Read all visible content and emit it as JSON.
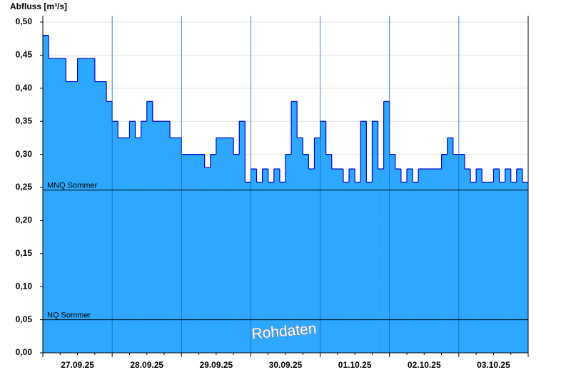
{
  "chart_data": {
    "type": "step-area",
    "title": "Abfluss [m³/s]",
    "watermark": "Rohdaten",
    "fill_color": "#2ea8ff",
    "line_color": "#0000cc",
    "grid": true,
    "categories": [
      null,
      null,
      null,
      null,
      null,
      null,
      "27.09.25",
      null,
      null,
      null,
      null,
      null,
      null,
      null,
      null,
      null,
      null,
      null,
      "28.09.25",
      null,
      null,
      null,
      null,
      null,
      null,
      null,
      null,
      null,
      null,
      null,
      "29.09.25",
      null,
      null,
      null,
      null,
      null,
      null,
      null,
      null,
      null,
      null,
      null,
      "30.09.25",
      null,
      null,
      null,
      null,
      null,
      null,
      null,
      null,
      null,
      null,
      null,
      "01.10.25",
      null,
      null,
      null,
      null,
      null,
      null,
      null,
      null,
      null,
      null,
      null,
      "02.10.25",
      null,
      null,
      null,
      null,
      null,
      null,
      null,
      null,
      null,
      null,
      null,
      "03.10.25",
      null,
      null,
      null,
      null,
      null
    ],
    "values": [
      0.48,
      0.445,
      0.445,
      0.445,
      0.41,
      0.41,
      0.445,
      0.445,
      0.445,
      0.41,
      0.41,
      0.38,
      0.35,
      0.325,
      0.325,
      0.35,
      0.325,
      0.35,
      0.38,
      0.35,
      0.35,
      0.35,
      0.325,
      0.325,
      0.3,
      0.3,
      0.3,
      0.3,
      0.28,
      0.3,
      0.325,
      0.325,
      0.325,
      0.3,
      0.35,
      0.258,
      0.278,
      0.258,
      0.278,
      0.258,
      0.278,
      0.258,
      0.3,
      0.38,
      0.325,
      0.3,
      0.278,
      0.325,
      0.35,
      0.3,
      0.278,
      0.278,
      0.258,
      0.278,
      0.258,
      0.35,
      0.258,
      0.35,
      0.278,
      0.38,
      0.3,
      0.278,
      0.258,
      0.278,
      0.258,
      0.278,
      0.278,
      0.278,
      0.278,
      0.3,
      0.325,
      0.3,
      0.3,
      0.278,
      0.258,
      0.278,
      0.258,
      0.258,
      0.278,
      0.258,
      0.278,
      0.258,
      0.278,
      0.258
    ],
    "reference_lines": [
      {
        "label": "MNQ Sommer",
        "value": 0.246
      },
      {
        "label": "NQ Sommer",
        "value": 0.05
      }
    ],
    "ylim": [
      0,
      0.5
    ],
    "yticks": [
      {
        "value": 0,
        "label": "0,00"
      },
      {
        "value": 0.05,
        "label": "0,05"
      },
      {
        "value": 0.1,
        "label": "0,10"
      },
      {
        "value": 0.15,
        "label": "0,15"
      },
      {
        "value": 0.2,
        "label": "0,20"
      },
      {
        "value": 0.25,
        "label": "0,25"
      },
      {
        "value": 0.3,
        "label": "0,30"
      },
      {
        "value": 0.35,
        "label": "0,35"
      },
      {
        "value": 0.4,
        "label": "0,40"
      },
      {
        "value": 0.45,
        "label": "0,45"
      },
      {
        "value": 0.5,
        "label": "0,50"
      }
    ]
  }
}
